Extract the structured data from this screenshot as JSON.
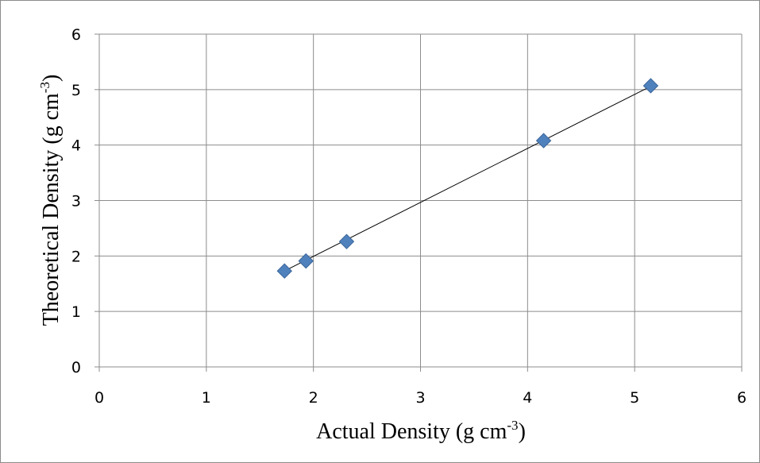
{
  "chart_data": {
    "type": "scatter",
    "title": "",
    "xlabel": {
      "main": "Actual Density (g cm",
      "sup": "-3",
      "end": ")"
    },
    "ylabel": {
      "main": "Theoretical Density (g cm",
      "sup": "-3",
      "end": ")"
    },
    "xlim": [
      0,
      6
    ],
    "ylim": [
      0,
      6
    ],
    "x_ticks": [
      0,
      1,
      2,
      3,
      4,
      5,
      6
    ],
    "y_ticks": [
      0,
      1,
      2,
      3,
      4,
      5,
      6
    ],
    "grid": true,
    "legend": "none",
    "marker": "diamond",
    "marker_color": "#4F81BD",
    "trendline": {
      "type": "linear",
      "color": "#000000",
      "x": [
        1.73,
        5.15
      ],
      "y": [
        1.73,
        5.06
      ]
    },
    "series": [
      {
        "x": [
          1.73,
          1.93,
          2.31,
          4.15,
          5.15
        ],
        "y": [
          1.73,
          1.91,
          2.26,
          4.08,
          5.07
        ]
      }
    ]
  }
}
